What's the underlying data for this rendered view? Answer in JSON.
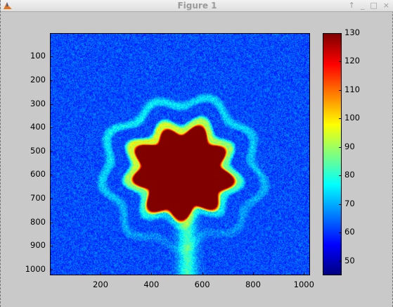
{
  "window": {
    "title": "Figure 1",
    "controls": {
      "pin": "↑",
      "minimize": "_",
      "maximize": "□",
      "close": "×"
    }
  },
  "chart_data": {
    "type": "heatmap",
    "title": "",
    "xlabel": "",
    "ylabel": "",
    "x_ticks": [
      "200",
      "400",
      "600",
      "800",
      "1000"
    ],
    "y_ticks": [
      "100",
      "200",
      "300",
      "400",
      "500",
      "600",
      "700",
      "800",
      "900",
      "1000"
    ],
    "colorbar_ticks": [
      "130",
      "120",
      "110",
      "100",
      "90",
      "80",
      "70",
      "60",
      "50"
    ],
    "xlim": [
      1,
      1024
    ],
    "ylim": [
      1,
      1024
    ],
    "clim": [
      45,
      130
    ],
    "colormap": "jet",
    "grid": false,
    "features": {
      "background_level": 62,
      "saturated_blob": {
        "center_x": 520,
        "center_y": 590,
        "radius": 180,
        "value": 130
      },
      "ring_bands": {
        "value": 95
      },
      "vertical_streak": {
        "x_center": 540,
        "y_from": 700,
        "y_to": 1024,
        "value": 78
      }
    }
  }
}
